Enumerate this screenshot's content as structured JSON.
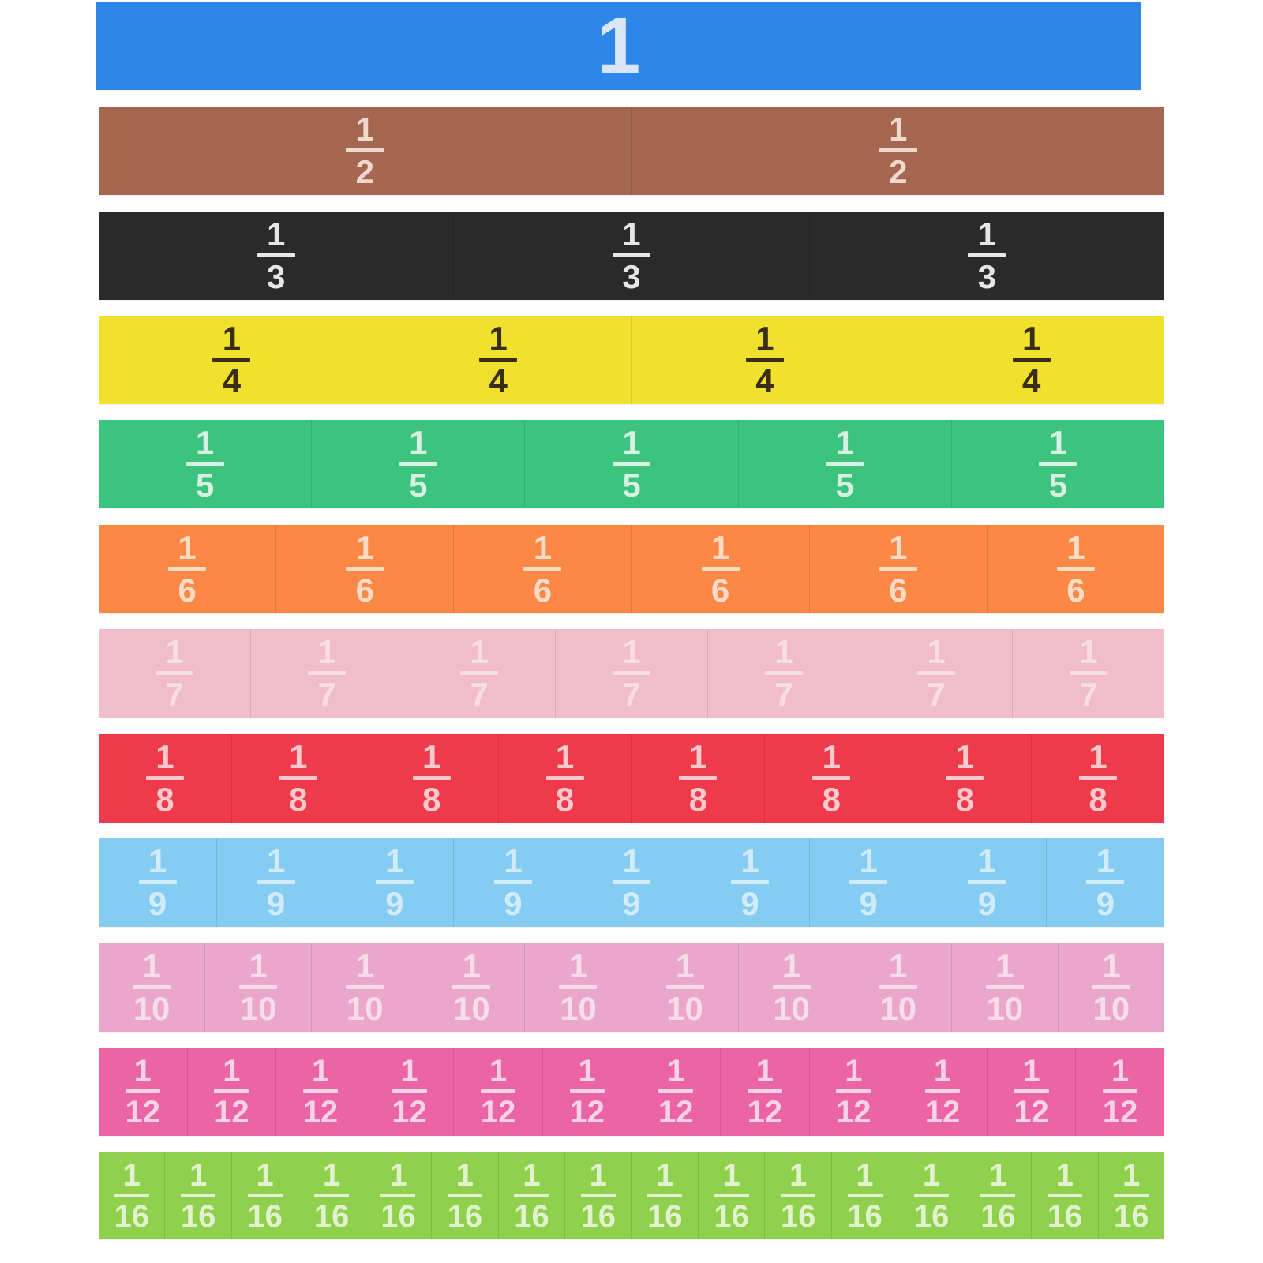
{
  "strips": [
    {
      "color": "#2E86E8",
      "text_color": "#D8E6F8",
      "whole": "1",
      "tiles": []
    },
    {
      "color": "#A5674F",
      "text_color": "#EFD9CF",
      "tiles": [
        {
          "num": "1",
          "den": "2"
        },
        {
          "num": "1",
          "den": "2"
        }
      ]
    },
    {
      "color": "#2A2A2A",
      "text_color": "#E6E6E6",
      "tiles": [
        {
          "num": "1",
          "den": "3"
        },
        {
          "num": "1",
          "den": "3"
        },
        {
          "num": "1",
          "den": "3"
        }
      ]
    },
    {
      "color": "#F0E12E",
      "text_color": "#3A2E12",
      "tiles": [
        {
          "num": "1",
          "den": "4"
        },
        {
          "num": "1",
          "den": "4"
        },
        {
          "num": "1",
          "den": "4"
        },
        {
          "num": "1",
          "den": "4"
        }
      ]
    },
    {
      "color": "#3CC37E",
      "text_color": "#D7F0E2",
      "tiles": [
        {
          "num": "1",
          "den": "5"
        },
        {
          "num": "1",
          "den": "5"
        },
        {
          "num": "1",
          "den": "5"
        },
        {
          "num": "1",
          "den": "5"
        },
        {
          "num": "1",
          "den": "5"
        }
      ]
    },
    {
      "color": "#FB8844",
      "text_color": "#FCDCC6",
      "tiles": [
        {
          "num": "1",
          "den": "6"
        },
        {
          "num": "1",
          "den": "6"
        },
        {
          "num": "1",
          "den": "6"
        },
        {
          "num": "1",
          "den": "6"
        },
        {
          "num": "1",
          "den": "6"
        },
        {
          "num": "1",
          "den": "6"
        }
      ]
    },
    {
      "color": "#F2BDCB",
      "text_color": "#F8DDE5",
      "tiles": [
        {
          "num": "1",
          "den": "7"
        },
        {
          "num": "1",
          "den": "7"
        },
        {
          "num": "1",
          "den": "7"
        },
        {
          "num": "1",
          "den": "7"
        },
        {
          "num": "1",
          "den": "7"
        },
        {
          "num": "1",
          "den": "7"
        },
        {
          "num": "1",
          "den": "7"
        }
      ]
    },
    {
      "color": "#EE3A4A",
      "text_color": "#F8C9CD",
      "tiles": [
        {
          "num": "1",
          "den": "8"
        },
        {
          "num": "1",
          "den": "8"
        },
        {
          "num": "1",
          "den": "8"
        },
        {
          "num": "1",
          "den": "8"
        },
        {
          "num": "1",
          "den": "8"
        },
        {
          "num": "1",
          "den": "8"
        },
        {
          "num": "1",
          "den": "8"
        },
        {
          "num": "1",
          "den": "8"
        }
      ]
    },
    {
      "color": "#85CCF3",
      "text_color": "#D2EBF8",
      "tiles": [
        {
          "num": "1",
          "den": "9"
        },
        {
          "num": "1",
          "den": "9"
        },
        {
          "num": "1",
          "den": "9"
        },
        {
          "num": "1",
          "den": "9"
        },
        {
          "num": "1",
          "den": "9"
        },
        {
          "num": "1",
          "den": "9"
        },
        {
          "num": "1",
          "den": "9"
        },
        {
          "num": "1",
          "den": "9"
        },
        {
          "num": "1",
          "den": "9"
        }
      ]
    },
    {
      "color": "#EBA6CC",
      "text_color": "#F7DCEA",
      "tiles": [
        {
          "num": "1",
          "den": "10"
        },
        {
          "num": "1",
          "den": "10"
        },
        {
          "num": "1",
          "den": "10"
        },
        {
          "num": "1",
          "den": "10"
        },
        {
          "num": "1",
          "den": "10"
        },
        {
          "num": "1",
          "den": "10"
        },
        {
          "num": "1",
          "den": "10"
        },
        {
          "num": "1",
          "den": "10"
        },
        {
          "num": "1",
          "den": "10"
        },
        {
          "num": "1",
          "den": "10"
        }
      ]
    },
    {
      "color": "#EB64A6",
      "text_color": "#F8D2E5",
      "tiles": [
        {
          "num": "1",
          "den": "12"
        },
        {
          "num": "1",
          "den": "12"
        },
        {
          "num": "1",
          "den": "12"
        },
        {
          "num": "1",
          "den": "12"
        },
        {
          "num": "1",
          "den": "12"
        },
        {
          "num": "1",
          "den": "12"
        },
        {
          "num": "1",
          "den": "12"
        },
        {
          "num": "1",
          "den": "12"
        },
        {
          "num": "1",
          "den": "12"
        },
        {
          "num": "1",
          "den": "12"
        },
        {
          "num": "1",
          "den": "12"
        },
        {
          "num": "1",
          "den": "12"
        }
      ]
    },
    {
      "color": "#8FD14C",
      "text_color": "#E2F2CF",
      "tiles": [
        {
          "num": "1",
          "den": "16"
        },
        {
          "num": "1",
          "den": "16"
        },
        {
          "num": "1",
          "den": "16"
        },
        {
          "num": "1",
          "den": "16"
        },
        {
          "num": "1",
          "den": "16"
        },
        {
          "num": "1",
          "den": "16"
        },
        {
          "num": "1",
          "den": "16"
        },
        {
          "num": "1",
          "den": "16"
        },
        {
          "num": "1",
          "den": "16"
        },
        {
          "num": "1",
          "den": "16"
        },
        {
          "num": "1",
          "den": "16"
        },
        {
          "num": "1",
          "den": "16"
        },
        {
          "num": "1",
          "den": "16"
        },
        {
          "num": "1",
          "den": "16"
        },
        {
          "num": "1",
          "den": "16"
        },
        {
          "num": "1",
          "den": "16"
        }
      ]
    }
  ]
}
